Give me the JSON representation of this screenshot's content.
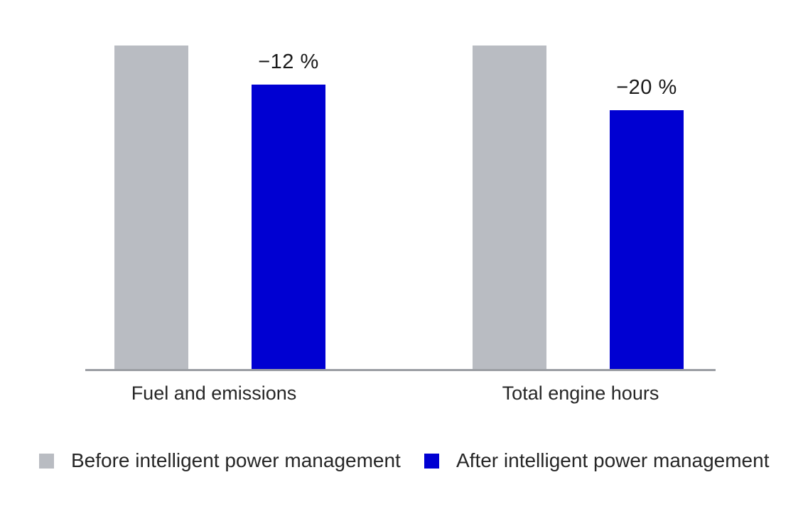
{
  "chart_data": {
    "type": "bar",
    "title": "",
    "xlabel": "",
    "ylabel": "",
    "categories": [
      "Fuel and emissions",
      "Total engine hours"
    ],
    "series": [
      {
        "name": "Before intelligent power management",
        "color": "#b9bcc2",
        "values": [
          100,
          100
        ]
      },
      {
        "name": "After intelligent power management",
        "color": "#0000d2",
        "values": [
          88,
          80
        ]
      }
    ],
    "bar_labels": [
      {
        "category": "Fuel and emissions",
        "series": "After intelligent power management",
        "text": "−12 %"
      },
      {
        "category": "Total engine hours",
        "series": "After intelligent power management",
        "text": "−20 %"
      }
    ],
    "ylim": [
      0,
      100
    ],
    "y_axis_shown": false,
    "grid": false,
    "legend_position": "bottom"
  },
  "colors": {
    "axis_line": "#9b9ea3",
    "text": "#1f1f1f",
    "background": "#ffffff"
  }
}
